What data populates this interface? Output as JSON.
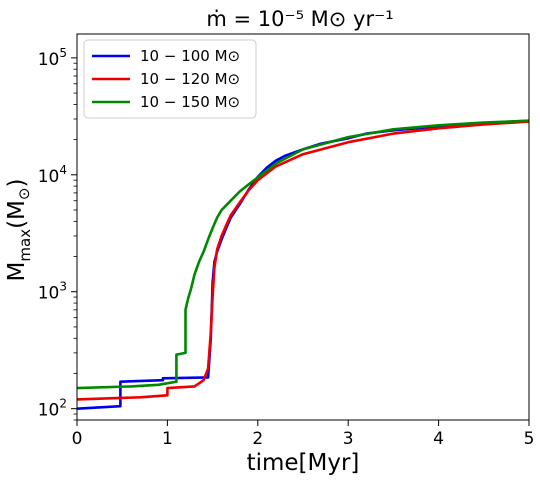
{
  "chart_data": {
    "type": "line",
    "title": "ṁ = 10⁻⁵ M⊙ yr⁻¹",
    "xlabel": "time[Myr]",
    "ylabel": "M_max(M⊙)",
    "xlim": [
      0,
      5
    ],
    "ylim": [
      80,
      160000
    ],
    "yscale": "log",
    "grid": false,
    "legend_position": "top-left",
    "x_ticks": [
      0,
      1,
      2,
      3,
      4,
      5
    ],
    "x_tick_labels": [
      "0",
      "1",
      "2",
      "3",
      "4",
      "5"
    ],
    "y_ticks": [
      100,
      1000,
      10000,
      100000
    ],
    "y_tick_labels": [
      {
        "base": "10",
        "exp": "2"
      },
      {
        "base": "10",
        "exp": "3"
      },
      {
        "base": "10",
        "exp": "4"
      },
      {
        "base": "10",
        "exp": "5"
      }
    ],
    "series": [
      {
        "name": "10 − 100 M⊙",
        "color": "#0000ee",
        "x": [
          0,
          0.48,
          0.48,
          0.95,
          0.95,
          1.45,
          1.48,
          1.5,
          1.52,
          1.55,
          1.6,
          1.65,
          1.7,
          1.8,
          1.9,
          2.0,
          2.1,
          2.2,
          2.3,
          2.5,
          2.7,
          3.0,
          3.2,
          3.5,
          4.0,
          4.5,
          5.0
        ],
        "y": [
          100,
          105,
          170,
          175,
          182,
          185,
          400,
          1200,
          1800,
          2200,
          2800,
          3500,
          4300,
          5600,
          7500,
          9600,
          11500,
          13200,
          14500,
          16500,
          18500,
          20500,
          22500,
          24000,
          26000,
          27500,
          29000
        ]
      },
      {
        "name": "10 − 120 M⊙",
        "color": "#ee0000",
        "x": [
          0,
          0.7,
          1.0,
          1.0,
          1.3,
          1.4,
          1.45,
          1.48,
          1.5,
          1.52,
          1.55,
          1.6,
          1.65,
          1.7,
          1.8,
          1.9,
          2.0,
          2.2,
          2.5,
          3.0,
          3.5,
          4.0,
          4.5,
          5.0
        ],
        "y": [
          120,
          125,
          130,
          150,
          155,
          175,
          220,
          450,
          900,
          1600,
          2300,
          3000,
          3700,
          4500,
          5800,
          7400,
          9000,
          11800,
          15000,
          19000,
          22500,
          25000,
          27000,
          28500
        ]
      },
      {
        "name": "10 − 150 M⊙",
        "color": "#008800",
        "x": [
          0,
          0.6,
          0.9,
          1.1,
          1.1,
          1.2,
          1.2,
          1.23,
          1.26,
          1.3,
          1.35,
          1.4,
          1.45,
          1.5,
          1.55,
          1.6,
          1.7,
          1.8,
          1.9,
          2.0,
          2.2,
          2.5,
          3.0,
          3.5,
          4.0,
          4.5,
          5.0
        ],
        "y": [
          150,
          155,
          160,
          170,
          290,
          300,
          700,
          880,
          1050,
          1400,
          1800,
          2200,
          2800,
          3500,
          4300,
          5000,
          6000,
          7200,
          8300,
          9500,
          12500,
          16500,
          21000,
          24500,
          26500,
          28000,
          29000
        ]
      }
    ]
  }
}
